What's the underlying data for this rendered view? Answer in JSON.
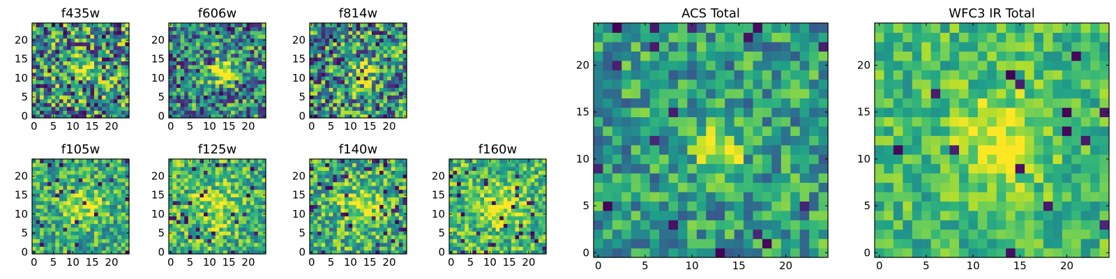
{
  "colormap": "viridis",
  "colors": {
    "low": "#440154",
    "mid": "#21908d",
    "high": "#fde725"
  },
  "chart_data": [
    {
      "type": "heatmap",
      "title": "f435w",
      "grid_size": 25,
      "xlim": [
        0,
        24
      ],
      "ylim": [
        0,
        24
      ],
      "xticks": [
        "0",
        "5",
        "10",
        "15",
        "20"
      ],
      "yticks": [
        "0",
        "5",
        "10",
        "15",
        "20"
      ]
    },
    {
      "type": "heatmap",
      "title": "f606w",
      "grid_size": 25,
      "xlim": [
        0,
        24
      ],
      "ylim": [
        0,
        24
      ],
      "xticks": [
        "0",
        "5",
        "10",
        "15",
        "20"
      ],
      "yticks": [
        "0",
        "5",
        "10",
        "15",
        "20"
      ]
    },
    {
      "type": "heatmap",
      "title": "f814w",
      "grid_size": 25,
      "xlim": [
        0,
        24
      ],
      "ylim": [
        0,
        24
      ],
      "xticks": [
        "0",
        "5",
        "10",
        "15",
        "20"
      ],
      "yticks": [
        "0",
        "5",
        "10",
        "15",
        "20"
      ]
    },
    {
      "type": "heatmap",
      "title": "f105w",
      "grid_size": 25,
      "xlim": [
        0,
        24
      ],
      "ylim": [
        0,
        24
      ],
      "xticks": [
        "0",
        "5",
        "10",
        "15",
        "20"
      ],
      "yticks": [
        "0",
        "5",
        "10",
        "15",
        "20"
      ]
    },
    {
      "type": "heatmap",
      "title": "f125w",
      "grid_size": 25,
      "xlim": [
        0,
        24
      ],
      "ylim": [
        0,
        24
      ],
      "xticks": [
        "0",
        "5",
        "10",
        "15",
        "20"
      ],
      "yticks": [
        "0",
        "5",
        "10",
        "15",
        "20"
      ]
    },
    {
      "type": "heatmap",
      "title": "f140w",
      "grid_size": 25,
      "xlim": [
        0,
        24
      ],
      "ylim": [
        0,
        24
      ],
      "xticks": [
        "0",
        "5",
        "10",
        "15",
        "20"
      ],
      "yticks": [
        "0",
        "5",
        "10",
        "15",
        "20"
      ]
    },
    {
      "type": "heatmap",
      "title": "f160w",
      "grid_size": 25,
      "xlim": [
        0,
        24
      ],
      "ylim": [
        0,
        24
      ],
      "xticks": [
        "0",
        "5",
        "10",
        "15",
        "20"
      ],
      "yticks": [
        "0",
        "5",
        "10",
        "15",
        "20"
      ]
    },
    {
      "type": "heatmap",
      "title": "ACS Total",
      "grid_size": 25,
      "xlim": [
        0,
        24
      ],
      "ylim": [
        0,
        24
      ],
      "xticks": [
        "0",
        "5",
        "10",
        "15",
        "20"
      ],
      "yticks": [
        "0",
        "5",
        "10",
        "15",
        "20"
      ]
    },
    {
      "type": "heatmap",
      "title": "WFC3 IR Total",
      "grid_size": 25,
      "xlim": [
        0,
        24
      ],
      "ylim": [
        0,
        24
      ],
      "xticks": [
        "0",
        "5",
        "10",
        "15",
        "20"
      ],
      "yticks": [
        "0",
        "5",
        "10",
        "15",
        "20"
      ]
    }
  ]
}
